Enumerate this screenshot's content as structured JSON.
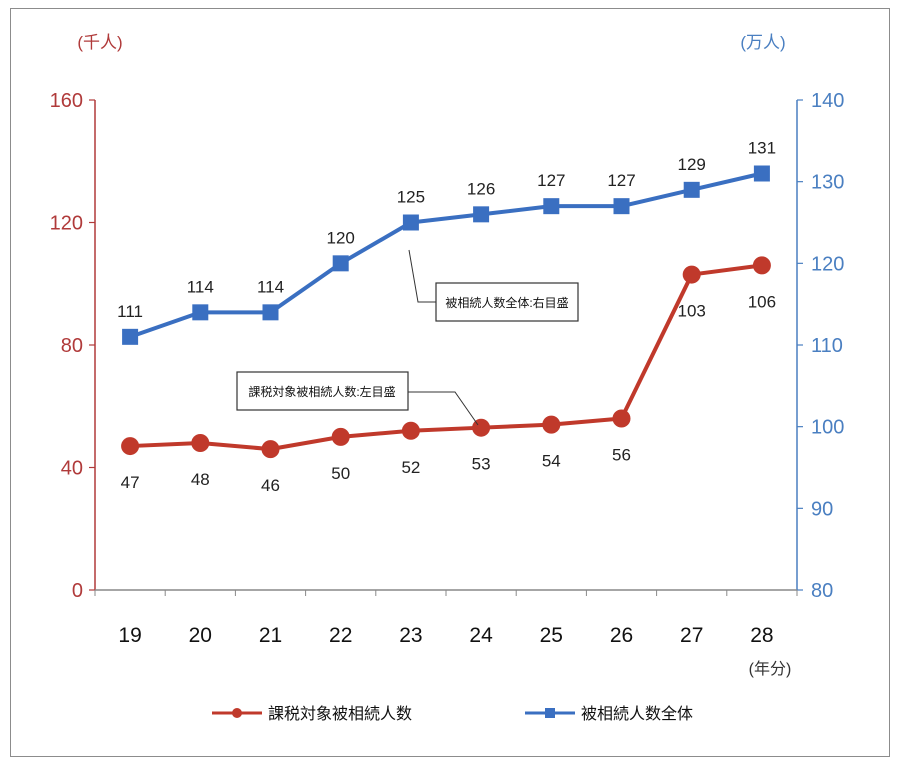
{
  "chart_data": {
    "type": "line",
    "categories": [
      "19",
      "20",
      "21",
      "22",
      "23",
      "24",
      "25",
      "26",
      "27",
      "28"
    ],
    "x_unit": "(年分)",
    "left_axis": {
      "unit": "(千人)",
      "ylim": [
        0,
        160
      ],
      "ticks": [
        "0",
        "40",
        "80",
        "120",
        "160"
      ],
      "color": "#B03A3A"
    },
    "right_axis": {
      "unit": "(万人)",
      "ylim": [
        80,
        140
      ],
      "ticks": [
        "80",
        "90",
        "100",
        "110",
        "120",
        "130",
        "140"
      ],
      "color": "#4A7FC1"
    },
    "series": [
      {
        "name": "課税対象被相続人数",
        "axis": "left",
        "color": "#C0392B",
        "marker": "circle",
        "values": [
          47,
          48,
          46,
          50,
          52,
          53,
          54,
          56,
          103,
          106
        ],
        "callout": "課税対象被相続人数:左目盛"
      },
      {
        "name": "被相続人数全体",
        "axis": "right",
        "color": "#3A6FC1",
        "marker": "square",
        "values": [
          111,
          114,
          114,
          120,
          125,
          126,
          127,
          127,
          129,
          131
        ],
        "callout": "被相続人数全体:右目盛"
      }
    ],
    "legend_position": "bottom",
    "grid": false
  }
}
